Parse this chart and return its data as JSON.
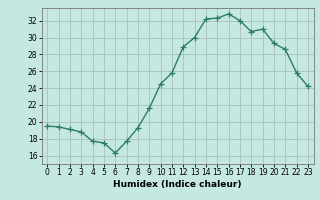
{
  "x": [
    0,
    1,
    2,
    3,
    4,
    5,
    6,
    7,
    8,
    9,
    10,
    11,
    12,
    13,
    14,
    15,
    16,
    17,
    18,
    19,
    20,
    21,
    22,
    23
  ],
  "y": [
    19.5,
    19.4,
    19.1,
    18.8,
    17.7,
    17.5,
    16.3,
    17.7,
    19.3,
    21.6,
    24.5,
    25.8,
    28.9,
    30.0,
    32.2,
    32.3,
    32.8,
    32.0,
    30.7,
    31.0,
    29.3,
    28.6,
    25.8,
    24.2
  ],
  "line_color": "#2e7b6e",
  "marker": "+",
  "marker_size": 4,
  "bg_color": "#c5e8e0",
  "grid_color": "#aabfba",
  "xlabel": "Humidex (Indice chaleur)",
  "xlim": [
    -0.5,
    23.5
  ],
  "ylim": [
    15.0,
    33.5
  ],
  "yticks": [
    16,
    18,
    20,
    22,
    24,
    26,
    28,
    30,
    32
  ],
  "xticks": [
    0,
    1,
    2,
    3,
    4,
    5,
    6,
    7,
    8,
    9,
    10,
    11,
    12,
    13,
    14,
    15,
    16,
    17,
    18,
    19,
    20,
    21,
    22,
    23
  ],
  "tick_fontsize": 5.5,
  "xlabel_fontsize": 6.5,
  "line_width": 1.0
}
